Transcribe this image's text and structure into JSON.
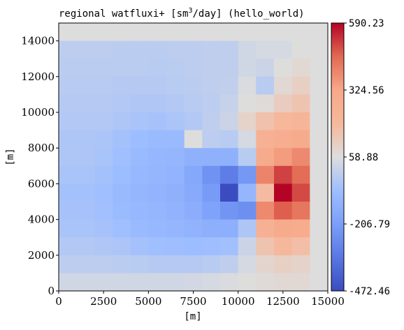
{
  "chart_data": {
    "type": "heatmap",
    "title": "regional watfluxi+ [sm",
    "title_sup": "3",
    "title_tail": "/day] (hello_world)",
    "xlabel": "[m]",
    "ylabel": "[m]",
    "xlim": [
      0,
      15000
    ],
    "ylim": [
      0,
      15000
    ],
    "x_ticks": [
      0,
      2500,
      5000,
      7500,
      10000,
      12500,
      15000
    ],
    "y_ticks": [
      0,
      2000,
      4000,
      6000,
      8000,
      10000,
      12000,
      14000
    ],
    "x_tick_labels": [
      "0",
      "2500",
      "5000",
      "7500",
      "10000",
      "12500",
      "15000"
    ],
    "y_tick_labels": [
      "0",
      "2000",
      "4000",
      "6000",
      "8000",
      "10000",
      "12000",
      "14000"
    ],
    "grid": false,
    "colormap": "coolwarm",
    "colorbar": {
      "vmin": -472.46,
      "vmax": 590.23,
      "ticks": [
        -472.46,
        -206.79,
        58.88,
        324.56,
        590.23
      ],
      "tick_labels": [
        "-472.46",
        "-206.79",
        "58.88",
        "324.56",
        "590.23"
      ]
    },
    "cell_size": 1000,
    "rows_top_to_bottom": [
      [
        58,
        58,
        58,
        58,
        58,
        58,
        58,
        58,
        58,
        58,
        58,
        58,
        58,
        58,
        58
      ],
      [
        -10,
        -10,
        -10,
        -15,
        -15,
        -15,
        -10,
        -10,
        -5,
        -5,
        30,
        40,
        40,
        60,
        58
      ],
      [
        -15,
        -15,
        -15,
        -15,
        -15,
        -20,
        -15,
        -10,
        -5,
        -5,
        30,
        20,
        60,
        80,
        58
      ],
      [
        -20,
        -20,
        -20,
        -25,
        -25,
        -25,
        -20,
        -15,
        -5,
        0,
        50,
        -20,
        80,
        110,
        58
      ],
      [
        -25,
        -25,
        -25,
        -30,
        -35,
        -35,
        -30,
        -20,
        -10,
        10,
        60,
        70,
        120,
        150,
        58
      ],
      [
        -30,
        -30,
        -30,
        -40,
        -50,
        -55,
        -45,
        -30,
        -5,
        20,
        100,
        160,
        200,
        220,
        58
      ],
      [
        -40,
        -40,
        -45,
        -60,
        -80,
        -90,
        -90,
        60,
        -10,
        -20,
        40,
        250,
        280,
        300,
        58
      ],
      [
        -40,
        -40,
        -50,
        -70,
        -90,
        -105,
        -110,
        -130,
        -130,
        -130,
        -20,
        300,
        350,
        390,
        58
      ],
      [
        -50,
        -50,
        -60,
        -80,
        -100,
        -110,
        -120,
        -170,
        -250,
        -320,
        -230,
        400,
        510,
        450,
        58
      ],
      [
        -60,
        -60,
        -70,
        -90,
        -110,
        -120,
        -130,
        -160,
        -220,
        -472,
        -110,
        180,
        590,
        500,
        58
      ],
      [
        -55,
        -55,
        -65,
        -85,
        -100,
        -110,
        -125,
        -145,
        -190,
        -240,
        -260,
        390,
        470,
        430,
        58
      ],
      [
        -50,
        -50,
        -55,
        -70,
        -90,
        -100,
        -110,
        -125,
        -135,
        -140,
        -40,
        250,
        300,
        290,
        58
      ],
      [
        -30,
        -30,
        -35,
        -45,
        -60,
        -70,
        -75,
        -80,
        -75,
        -65,
        20,
        150,
        190,
        170,
        58
      ],
      [
        -10,
        -10,
        -10,
        -15,
        -20,
        -25,
        -25,
        -25,
        -20,
        -5,
        40,
        90,
        110,
        100,
        58
      ],
      [
        30,
        30,
        30,
        30,
        30,
        30,
        30,
        35,
        40,
        50,
        60,
        70,
        80,
        80,
        58
      ]
    ]
  }
}
